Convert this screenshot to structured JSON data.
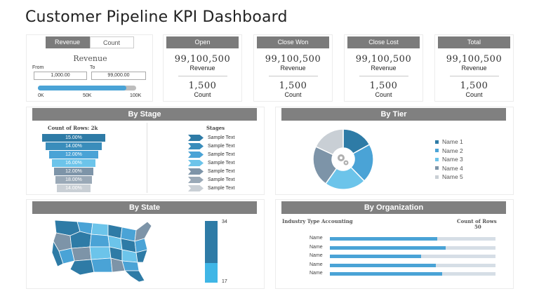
{
  "title": "Customer Pipeline KPI Dashboard",
  "colors": {
    "dark_blue": "#2e7ba6",
    "mid_blue": "#4aa3d6",
    "light_blue": "#6cc4ea",
    "slate": "#7d94a8",
    "light_gray": "#c9cfd5",
    "header_gray": "#7b7b7b"
  },
  "filter_card": {
    "tabs": [
      "Revenue",
      "Count"
    ],
    "heading": "Revenue",
    "from_label": "From",
    "to_label": "To",
    "from_value": "1,000.00",
    "to_value": "99,000.00",
    "slider_fraction": 0.9,
    "slider_ticks": [
      "0K",
      "50K",
      "100K"
    ]
  },
  "kpis": [
    {
      "name": "Open",
      "revenue": "99,100,500",
      "revenue_label": "Revenue",
      "count": "1,500",
      "count_label": "Count"
    },
    {
      "name": "Close Won",
      "revenue": "99,100,500",
      "revenue_label": "Revenue",
      "count": "1,500",
      "count_label": "Count"
    },
    {
      "name": "Close Lost",
      "revenue": "99,100,500",
      "revenue_label": "Revenue",
      "count": "1,500",
      "count_label": "Count"
    },
    {
      "name": "Total",
      "revenue": "99,100,500",
      "revenue_label": "Revenue",
      "count": "1,500",
      "count_label": "Count"
    }
  ],
  "by_stage": {
    "title": "By Stage",
    "funnel_title": "Count of Rows: 2k",
    "stages_title": "Stages",
    "funnel": [
      "15.00%",
      "14.00%",
      "12.00%",
      "16.00%",
      "12.00%",
      "18.00%",
      "14.00%"
    ],
    "stages": [
      "Sample Text",
      "Sample Text",
      "Sample Text",
      "Sample Text",
      "Sample Text",
      "Sample Text",
      "Sample Text"
    ]
  },
  "by_tier": {
    "title": "By Tier",
    "legend": [
      "Name 1",
      "Name 2",
      "Name 3",
      "Name 4",
      "Name 5"
    ],
    "center_icon": "gears-icon"
  },
  "by_state": {
    "title": "By State",
    "scale_max": "34",
    "scale_min": "17"
  },
  "by_org": {
    "title": "By Organization",
    "left_label": "Industry Type Accounting",
    "right_label": "Count of Rows",
    "right_value": "50",
    "bars": [
      {
        "name": "Name",
        "value": 0.65
      },
      {
        "name": "Name",
        "value": 0.7
      },
      {
        "name": "Name",
        "value": 0.55
      },
      {
        "name": "Name",
        "value": 0.64
      },
      {
        "name": "Name",
        "value": 0.68
      }
    ]
  }
}
